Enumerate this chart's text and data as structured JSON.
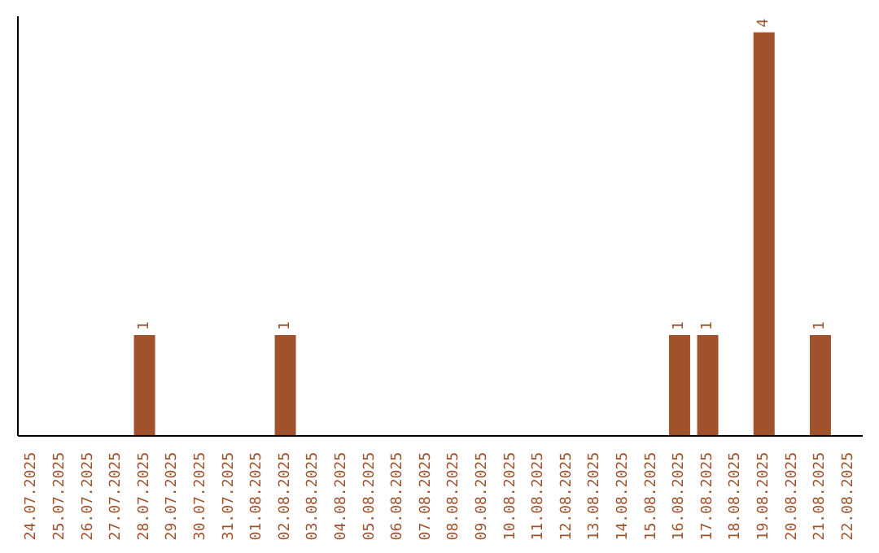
{
  "chart_data": {
    "type": "bar",
    "categories": [
      "24.07.2025",
      "25.07.2025",
      "26.07.2025",
      "27.07.2025",
      "28.07.2025",
      "29.07.2025",
      "30.07.2025",
      "31.07.2025",
      "01.08.2025",
      "02.08.2025",
      "03.08.2025",
      "04.08.2025",
      "05.08.2025",
      "06.08.2025",
      "07.08.2025",
      "08.08.2025",
      "09.08.2025",
      "10.08.2025",
      "11.08.2025",
      "12.08.2025",
      "13.08.2025",
      "14.08.2025",
      "15.08.2025",
      "16.08.2025",
      "17.08.2025",
      "18.08.2025",
      "19.08.2025",
      "20.08.2025",
      "21.08.2025",
      "22.08.2025"
    ],
    "values": [
      0,
      0,
      0,
      0,
      1,
      0,
      0,
      0,
      0,
      1,
      0,
      0,
      0,
      0,
      0,
      0,
      0,
      0,
      0,
      0,
      0,
      0,
      0,
      1,
      1,
      0,
      4,
      0,
      1,
      0
    ],
    "value_labels": [
      null,
      null,
      null,
      null,
      "1",
      null,
      null,
      null,
      null,
      "1",
      null,
      null,
      null,
      null,
      null,
      null,
      null,
      null,
      null,
      null,
      null,
      null,
      null,
      "1",
      "1",
      null,
      "4",
      null,
      "1",
      null
    ],
    "color": "#a0522d",
    "grid": false,
    "legend": false
  }
}
